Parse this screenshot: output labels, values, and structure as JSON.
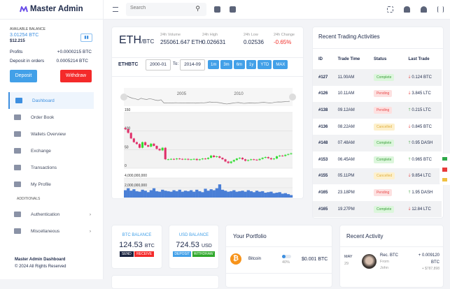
{
  "app": {
    "title": "Master Admin"
  },
  "header": {
    "search_placeholder": "Search"
  },
  "sidebar": {
    "balance_label": "AVAILABLE BALANCE",
    "balance_btc": "3.01254 BTC",
    "balance_usd": "$12.215",
    "profits_label": "Profits",
    "profits_value": "+0.0000215 BTC",
    "deposit_orders_label": "Deposit in orders",
    "deposit_orders_value": "0.0005214 BTC",
    "deposit_btn": "Deposit",
    "withdraw_btn": "Withdraw",
    "items": [
      {
        "label": "Dashboard",
        "active": true
      },
      {
        "label": "Order Book"
      },
      {
        "label": "Wallets Overview"
      },
      {
        "label": "Exchange"
      },
      {
        "label": "Transactions"
      },
      {
        "label": "My Profile"
      }
    ],
    "section_label": "ADDITIONALS",
    "extra_items": [
      {
        "label": "Authentication"
      },
      {
        "label": "Miscellaneous"
      }
    ],
    "footer_title": "Master Admin Dashboard",
    "footer_copy": "© 2024 All Rights Reserved"
  },
  "ticker": {
    "pair": "ETH",
    "quote": "/BTC",
    "stats": [
      {
        "label": "24h Volume",
        "value": "255061.647 ETH"
      },
      {
        "label": "24h High",
        "value": "0.026631"
      },
      {
        "label": "24h Low",
        "value": "0.02536"
      },
      {
        "label": "24h Change",
        "value": "-0.65%",
        "color": "#f0302a"
      }
    ],
    "symbol": "ETHBTC",
    "from": "2000-01",
    "to_label": "To:",
    "to": "2014-09",
    "ranges": [
      "1m",
      "3m",
      "6m",
      "1y",
      "YTD",
      "MAX"
    ]
  },
  "chart_data": {
    "type": "candlestick",
    "price_axis": {
      "ticks": [
        "150",
        "100",
        "50",
        "0"
      ],
      "range": [
        0,
        150
      ]
    },
    "volume_axis": {
      "ticks": [
        "4,000,000,000",
        "2,000,000,000",
        "0"
      ],
      "range": [
        0,
        4000000000
      ]
    },
    "x_ticks": [
      "2005",
      "2010"
    ],
    "x_range": [
      2000,
      2014.75
    ],
    "closes": [
      105,
      95,
      80,
      70,
      65,
      55,
      70,
      62,
      58,
      66,
      60,
      52,
      48,
      55,
      24,
      24,
      25,
      24,
      26,
      25,
      24,
      25,
      23,
      24,
      25,
      22,
      24,
      26,
      25,
      28,
      34,
      30,
      32,
      28,
      24,
      18,
      14,
      18,
      22,
      26,
      28,
      24,
      20,
      22,
      24,
      23,
      22,
      25,
      28,
      30,
      27,
      24,
      26,
      32,
      34,
      33,
      36,
      38,
      40
    ],
    "volumes": [
      1.5,
      1.9,
      1.4,
      1.7,
      1.3,
      1.2,
      1.6,
      1.4,
      1.1,
      1.5,
      1.9,
      1.3,
      1.2,
      1.6,
      1.4,
      1.3,
      1.2,
      1.5,
      1.3,
      1.6,
      1.2,
      1.4,
      1.3,
      1.5,
      1.2,
      1.6,
      1.3,
      1.1,
      1.8,
      1.4,
      1.7,
      1.5,
      1.9,
      2.7,
      1.6,
      1.4,
      1.2,
      1.3,
      1.5,
      1.2,
      1.3,
      1.4,
      1.2,
      1.5,
      1.3,
      1.1,
      1.4,
      1.2,
      1.3,
      1.0,
      1.1,
      1.2,
      0.9,
      1.0,
      1.1,
      0.8,
      0.9,
      0.7,
      0.5
    ]
  },
  "trades": {
    "title": "Recent Trading Activities",
    "columns": [
      "ID",
      "Trade Time",
      "Status",
      "Last Trade"
    ],
    "rows": [
      {
        "id": "#127",
        "time": "11.00AM",
        "status": "Complete",
        "dir": "down",
        "amount": "0.124 BTC"
      },
      {
        "id": "#126",
        "time": "10.11AM",
        "status": "Pending",
        "dir": "down",
        "amount": "3.845 LTC"
      },
      {
        "id": "#138",
        "time": "09.12AM",
        "status": "Pending",
        "dir": "up",
        "amount": "0.215 LTC"
      },
      {
        "id": "#136",
        "time": "08.22AM",
        "status": "Cancelled",
        "dir": "down",
        "amount": "0.845 BTC"
      },
      {
        "id": "#148",
        "time": "07.48AM",
        "status": "Complete",
        "dir": "up",
        "amount": "0.95 DASH"
      },
      {
        "id": "#153",
        "time": "06.45AM",
        "status": "Complete",
        "dir": "up",
        "amount": "0.965 BTC"
      },
      {
        "id": "#155",
        "time": "05.11PM",
        "status": "Cancelled",
        "dir": "down",
        "amount": "9.854 LTC"
      },
      {
        "id": "#165",
        "time": "23.18PM",
        "status": "Pending",
        "dir": "up",
        "amount": "1.95 DASH"
      },
      {
        "id": "#165",
        "time": "19.27PM",
        "status": "Complete",
        "dir": "down",
        "amount": "12.84 LTC"
      }
    ]
  },
  "btc_balance": {
    "label": "BTC BALANCE",
    "value": "124.53",
    "unit": "BTC",
    "send": "SEND",
    "receive": "RECEIVE"
  },
  "usd_balance": {
    "label": "USD BALANCE",
    "value": "724.53",
    "unit": "USD",
    "deposit": "DEPOSIT",
    "withdraw": "WITHDRAW"
  },
  "portfolio": {
    "title": "Your Portfolio",
    "items": [
      {
        "name": "Bitcoin",
        "percent": "40%",
        "progress": 40,
        "value": "$0.001 BTC"
      }
    ]
  },
  "activity": {
    "title": "Recent Activity",
    "items": [
      {
        "month": "MAY",
        "day": "29",
        "title": "Rec. BTC",
        "from_label": "From",
        "from": "John",
        "amount": "+ 0.009120",
        "unit": "BTC",
        "usd": "+ $787,898"
      }
    ]
  }
}
